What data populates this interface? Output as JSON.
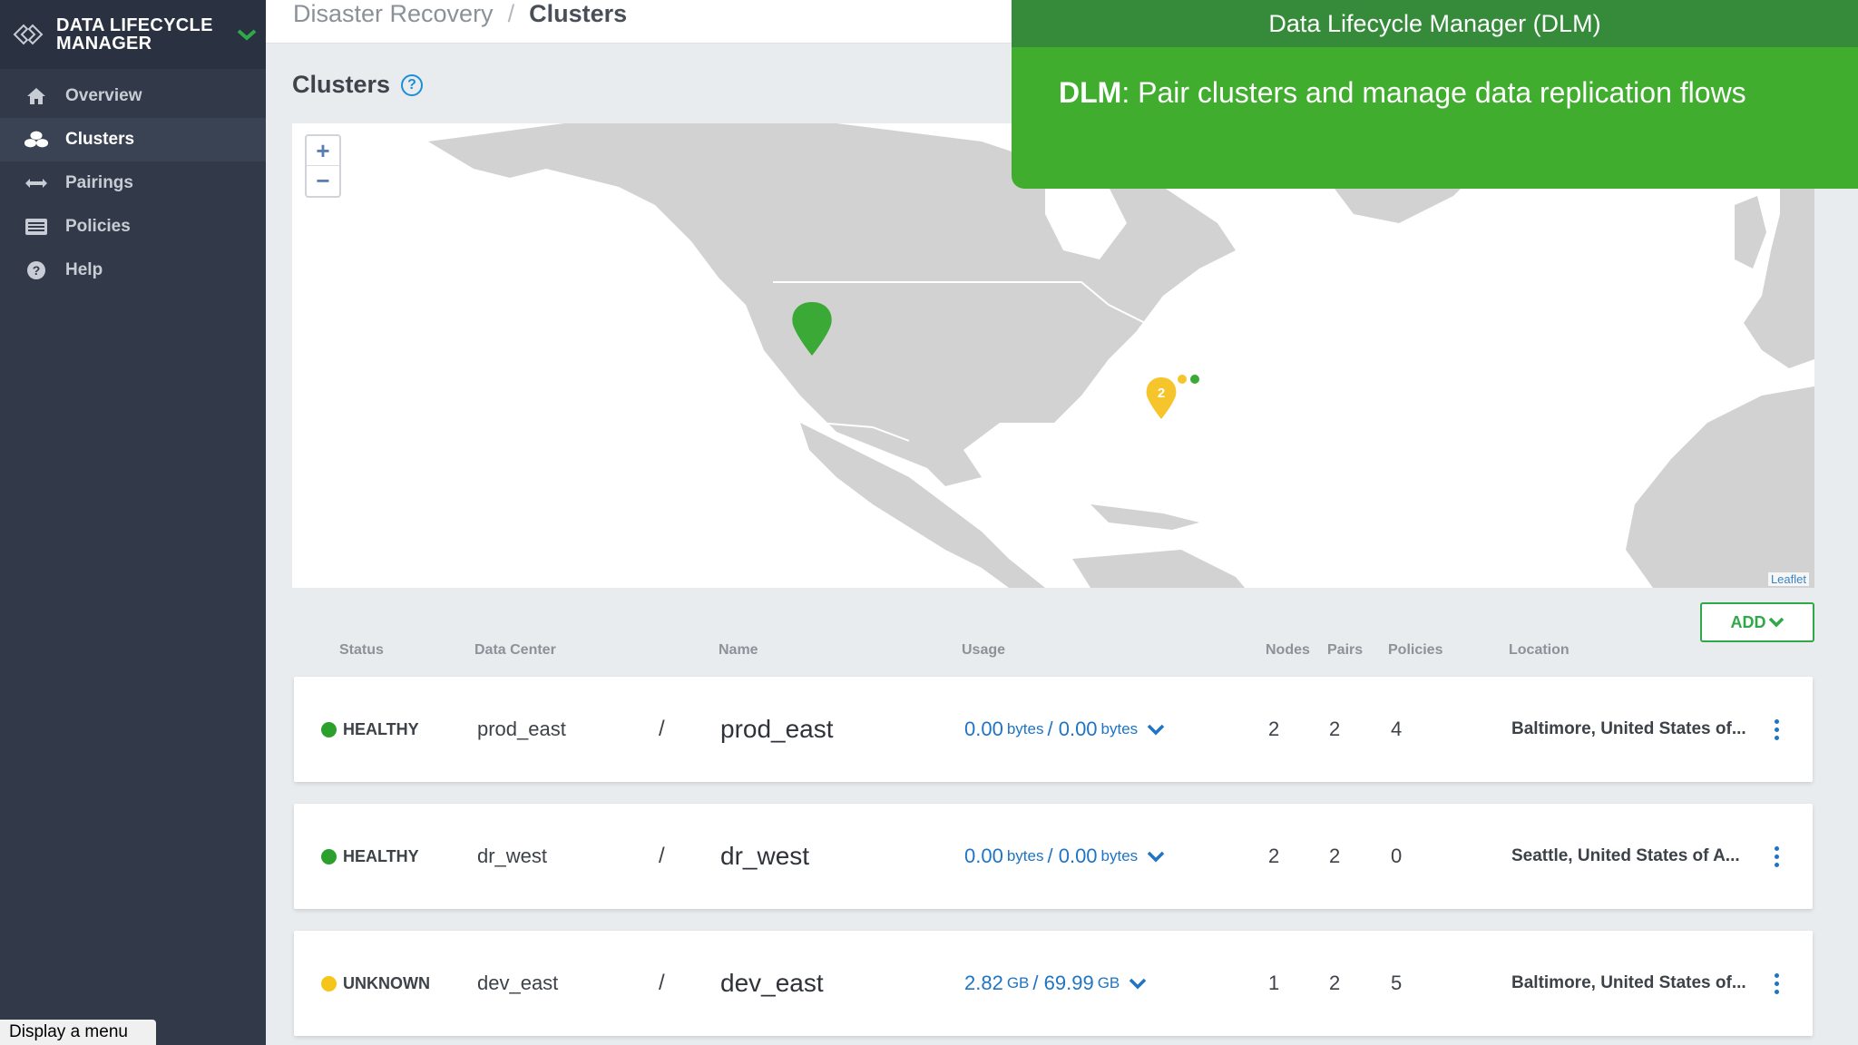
{
  "app": {
    "brand": "DATA LIFECYCLE MANAGER"
  },
  "sidebar": {
    "items": [
      {
        "label": "Overview",
        "icon": "home-icon"
      },
      {
        "label": "Clusters",
        "icon": "clusters-icon",
        "active": true
      },
      {
        "label": "Pairings",
        "icon": "pairings-icon"
      },
      {
        "label": "Policies",
        "icon": "policies-icon"
      },
      {
        "label": "Help",
        "icon": "help-icon"
      }
    ],
    "menu_tooltip": "Display a menu"
  },
  "header": {
    "breadcrumb_root": "Disaster Recovery",
    "breadcrumb_sep": "/",
    "breadcrumb_current": "Clusters"
  },
  "page": {
    "title": "Clusters",
    "help_glyph": "?"
  },
  "map": {
    "zoom_in": "+",
    "zoom_out": "−",
    "attribution": "Leaflet",
    "cluster_count": "2"
  },
  "toolbar": {
    "add_label": "ADD"
  },
  "table": {
    "headers": {
      "status": "Status",
      "data_center": "Data Center",
      "name": "Name",
      "usage": "Usage",
      "nodes": "Nodes",
      "pairs": "Pairs",
      "policies": "Policies",
      "location": "Location"
    },
    "rows": [
      {
        "status": "HEALTHY",
        "status_color": "#2ca02c",
        "data_center": "prod_east",
        "sep": "/",
        "name": "prod_east",
        "used": "0.00",
        "used_unit": "bytes",
        "usage_sep": "/",
        "total": "0.00",
        "total_unit": "bytes",
        "nodes": "2",
        "pairs": "2",
        "policies": "4",
        "location": "Baltimore, United States of..."
      },
      {
        "status": "HEALTHY",
        "status_color": "#2ca02c",
        "data_center": "dr_west",
        "sep": "/",
        "name": "dr_west",
        "used": "0.00",
        "used_unit": "bytes",
        "usage_sep": "/",
        "total": "0.00",
        "total_unit": "bytes",
        "nodes": "2",
        "pairs": "2",
        "policies": "0",
        "location": "Seattle, United States of A..."
      },
      {
        "status": "UNKNOWN",
        "status_color": "#f5c518",
        "data_center": "dev_east",
        "sep": "/",
        "name": "dev_east",
        "used": "2.82",
        "used_unit": "GB",
        "usage_sep": "/",
        "total": "69.99",
        "total_unit": "GB",
        "nodes": "1",
        "pairs": "2",
        "policies": "5",
        "location": "Baltimore, United States of..."
      }
    ]
  },
  "banner": {
    "top": "Data Lifecycle Manager (DLM)",
    "main_bold": "DLM",
    "main_text": ": Pair clusters and manage data replication flows"
  },
  "colors": {
    "sidebar": "#323a4a",
    "accent_green": "#2fa84a",
    "link_blue": "#1f74c4",
    "banner_dark": "#358b3a",
    "banner_light": "#41ad2e"
  }
}
